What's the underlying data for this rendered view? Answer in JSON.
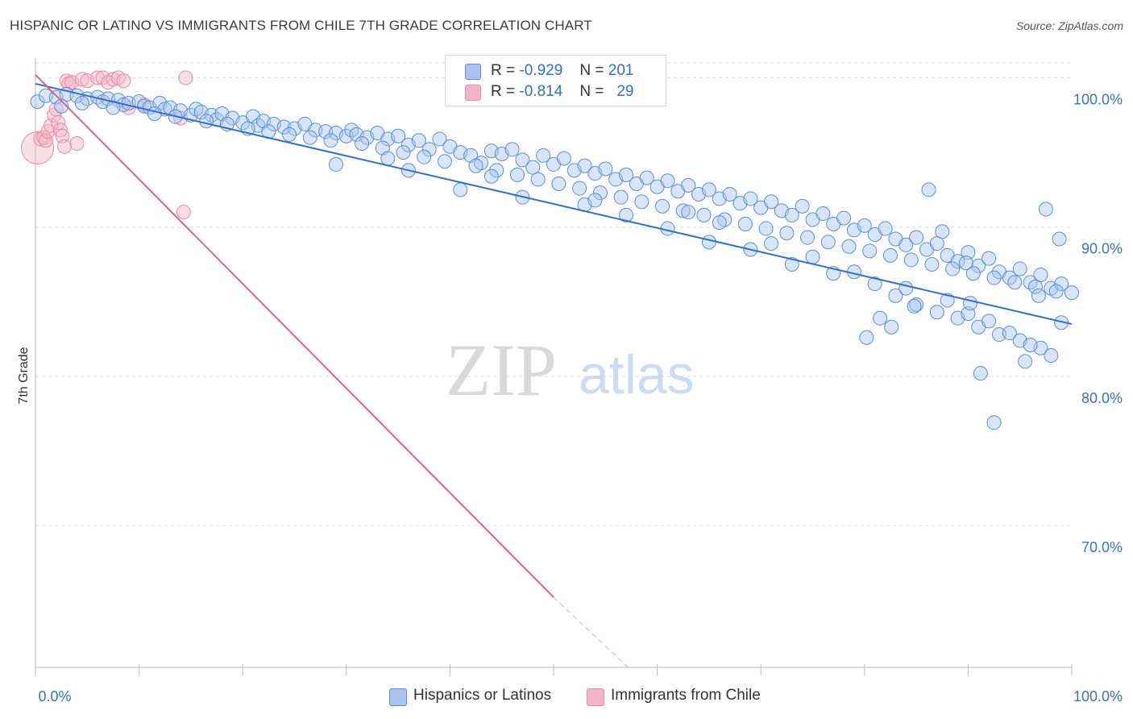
{
  "header": {
    "title": "HISPANIC OR LATINO VS IMMIGRANTS FROM CHILE 7TH GRADE CORRELATION CHART",
    "source": "Source: ZipAtlas.com"
  },
  "watermark": {
    "zip": "ZIP",
    "atlas": "atlas"
  },
  "legend": {
    "rows": [
      {
        "r_label": "R =",
        "r_value": "-0.929",
        "n_label": "N =",
        "n_value": "201",
        "color": "#a9c5ef"
      },
      {
        "r_label": "R =",
        "r_value": "-0.814",
        "n_label": "N =",
        "n_value": "29",
        "color": "#f5b5c8"
      }
    ]
  },
  "bottom_legend": [
    {
      "label": "Hispanics or Latinos",
      "color": "#a9c5ef"
    },
    {
      "label": "Immigrants from Chile",
      "color": "#f5b5c8"
    }
  ],
  "colors": {
    "blue_fill": "#a9c5ef",
    "blue_stroke": "#5b8fd8",
    "blue_line": "#2f6fd0",
    "pink_fill": "#f5b5c8",
    "pink_stroke": "#e889a8",
    "pink_line": "#e0608c",
    "grid": "#dddddd",
    "tick_label": "#3a72c4"
  },
  "chart_data": {
    "type": "scatter",
    "title": "HISPANIC OR LATINO VS IMMIGRANTS FROM CHILE 7TH GRADE CORRELATION CHART",
    "xlabel": "",
    "ylabel": "7th Grade",
    "xlim": [
      0,
      100
    ],
    "ylim": [
      60.5,
      101
    ],
    "x_tick_labels": [
      "0.0%",
      "100.0%"
    ],
    "y_ticks": [
      70,
      80,
      90,
      100
    ],
    "y_tick_labels": [
      "70.0%",
      "80.0%",
      "90.0%",
      "100.0%"
    ],
    "grid": true,
    "legend_position": "top-center",
    "series": [
      {
        "name": "Hispanics or Latinos",
        "r": -0.929,
        "n": 201,
        "trend": {
          "x0": 0,
          "y0": 99.6,
          "x1": 100,
          "y1": 83.5
        },
        "points": [
          [
            0.2,
            98.4
          ],
          [
            1,
            98.8
          ],
          [
            2,
            98.7
          ],
          [
            3,
            98.9
          ],
          [
            4,
            98.8
          ],
          [
            5,
            98.6
          ],
          [
            6,
            98.7
          ],
          [
            6.5,
            98.4
          ],
          [
            7,
            98.6
          ],
          [
            8,
            98.5
          ],
          [
            8.5,
            98.2
          ],
          [
            9,
            98.3
          ],
          [
            10,
            98.4
          ],
          [
            10.5,
            98.1
          ],
          [
            11,
            98.0
          ],
          [
            12,
            98.3
          ],
          [
            12.5,
            97.9
          ],
          [
            13,
            98.0
          ],
          [
            14,
            97.8
          ],
          [
            15,
            97.5
          ],
          [
            15.5,
            97.9
          ],
          [
            16,
            97.7
          ],
          [
            17,
            97.5
          ],
          [
            17.5,
            97.2
          ],
          [
            18,
            97.6
          ],
          [
            19,
            97.3
          ],
          [
            20,
            97.0
          ],
          [
            21,
            97.4
          ],
          [
            21.5,
            96.8
          ],
          [
            22,
            97.1
          ],
          [
            23,
            96.9
          ],
          [
            24,
            96.7
          ],
          [
            25,
            96.6
          ],
          [
            26,
            96.9
          ],
          [
            27,
            96.5
          ],
          [
            28,
            96.4
          ],
          [
            29,
            96.3
          ],
          [
            30,
            96.1
          ],
          [
            30.5,
            96.5
          ],
          [
            31,
            96.2
          ],
          [
            32,
            96.0
          ],
          [
            33,
            96.3
          ],
          [
            34,
            95.9
          ],
          [
            35,
            96.1
          ],
          [
            36,
            95.5
          ],
          [
            37,
            95.8
          ],
          [
            38,
            95.2
          ],
          [
            39,
            95.9
          ],
          [
            40,
            95.4
          ],
          [
            41,
            95.0
          ],
          [
            42,
            94.8
          ],
          [
            43,
            94.3
          ],
          [
            44,
            95.1
          ],
          [
            45,
            94.9
          ],
          [
            46,
            95.2
          ],
          [
            47,
            94.5
          ],
          [
            48,
            94.0
          ],
          [
            49,
            94.8
          ],
          [
            50,
            94.2
          ],
          [
            51,
            94.6
          ],
          [
            52,
            93.8
          ],
          [
            53,
            94.1
          ],
          [
            54,
            93.6
          ],
          [
            55,
            93.9
          ],
          [
            56,
            93.2
          ],
          [
            57,
            93.5
          ],
          [
            58,
            92.9
          ],
          [
            59,
            93.3
          ],
          [
            60,
            92.7
          ],
          [
            61,
            93.1
          ],
          [
            62,
            92.4
          ],
          [
            63,
            92.8
          ],
          [
            64,
            92.2
          ],
          [
            65,
            92.5
          ],
          [
            66,
            91.9
          ],
          [
            67,
            92.2
          ],
          [
            68,
            91.6
          ],
          [
            69,
            91.9
          ],
          [
            70,
            91.3
          ],
          [
            71,
            91.7
          ],
          [
            72,
            91.1
          ],
          [
            73,
            90.8
          ],
          [
            74,
            91.4
          ],
          [
            75,
            90.5
          ],
          [
            76,
            90.9
          ],
          [
            77,
            90.2
          ],
          [
            78,
            90.6
          ],
          [
            79,
            89.8
          ],
          [
            80,
            90.1
          ],
          [
            81,
            89.5
          ],
          [
            82,
            89.9
          ],
          [
            83,
            89.2
          ],
          [
            84,
            88.8
          ],
          [
            85,
            89.3
          ],
          [
            86,
            88.5
          ],
          [
            87,
            88.9
          ],
          [
            88,
            88.1
          ],
          [
            89,
            87.7
          ],
          [
            90,
            88.3
          ],
          [
            91,
            87.4
          ],
          [
            92,
            87.9
          ],
          [
            93,
            87.0
          ],
          [
            94,
            86.6
          ],
          [
            95,
            87.2
          ],
          [
            96,
            86.3
          ],
          [
            97,
            86.8
          ],
          [
            98,
            85.9
          ],
          [
            99,
            86.2
          ],
          [
            100,
            85.6
          ],
          [
            2.5,
            98.1
          ],
          [
            4.5,
            98.3
          ],
          [
            7.5,
            98.0
          ],
          [
            11.5,
            97.6
          ],
          [
            13.5,
            97.4
          ],
          [
            16.5,
            97.1
          ],
          [
            18.5,
            96.9
          ],
          [
            20.5,
            96.6
          ],
          [
            22.5,
            96.4
          ],
          [
            24.5,
            96.2
          ],
          [
            26.5,
            96.0
          ],
          [
            28.5,
            95.8
          ],
          [
            31.5,
            95.6
          ],
          [
            33.5,
            95.3
          ],
          [
            35.5,
            95.0
          ],
          [
            37.5,
            94.7
          ],
          [
            39.5,
            94.4
          ],
          [
            42.5,
            94.1
          ],
          [
            44.5,
            93.8
          ],
          [
            46.5,
            93.5
          ],
          [
            48.5,
            93.2
          ],
          [
            50.5,
            92.9
          ],
          [
            52.5,
            92.6
          ],
          [
            54.5,
            92.3
          ],
          [
            56.5,
            92.0
          ],
          [
            58.5,
            91.7
          ],
          [
            60.5,
            91.4
          ],
          [
            62.5,
            91.1
          ],
          [
            64.5,
            90.8
          ],
          [
            66.5,
            90.5
          ],
          [
            68.5,
            90.2
          ],
          [
            70.5,
            89.9
          ],
          [
            72.5,
            89.6
          ],
          [
            74.5,
            89.3
          ],
          [
            76.5,
            89.0
          ],
          [
            78.5,
            88.7
          ],
          [
            80.5,
            88.4
          ],
          [
            82.5,
            88.1
          ],
          [
            84.5,
            87.8
          ],
          [
            86.5,
            87.5
          ],
          [
            88.5,
            87.2
          ],
          [
            90.5,
            86.9
          ],
          [
            92.5,
            86.6
          ],
          [
            94.5,
            86.3
          ],
          [
            96.5,
            86.0
          ],
          [
            98.5,
            85.7
          ],
          [
            29,
            94.2
          ],
          [
            36,
            93.8
          ],
          [
            41,
            92.5
          ],
          [
            47,
            92.0
          ],
          [
            53,
            91.5
          ],
          [
            57,
            90.8
          ],
          [
            61,
            89.9
          ],
          [
            65,
            89.0
          ],
          [
            69,
            88.5
          ],
          [
            73,
            87.5
          ],
          [
            77,
            86.9
          ],
          [
            81,
            86.2
          ],
          [
            83,
            85.4
          ],
          [
            85,
            84.8
          ],
          [
            87,
            84.3
          ],
          [
            89,
            83.9
          ],
          [
            91,
            83.3
          ],
          [
            93,
            82.8
          ],
          [
            95,
            82.4
          ],
          [
            97,
            81.9
          ],
          [
            34,
            94.6
          ],
          [
            44,
            93.4
          ],
          [
            54,
            91.8
          ],
          [
            63,
            91.0
          ],
          [
            66,
            90.3
          ],
          [
            71,
            88.9
          ],
          [
            75,
            88.0
          ],
          [
            79,
            87.0
          ],
          [
            84,
            85.9
          ],
          [
            88,
            85.1
          ],
          [
            90,
            84.2
          ],
          [
            92,
            83.7
          ],
          [
            94,
            82.9
          ],
          [
            96,
            82.1
          ],
          [
            98,
            81.4
          ],
          [
            99,
            83.6
          ],
          [
            98.8,
            89.2
          ],
          [
            97.5,
            91.2
          ],
          [
            96.8,
            85.4
          ],
          [
            95.5,
            81.0
          ],
          [
            92.5,
            76.9
          ],
          [
            91.2,
            80.2
          ],
          [
            90.2,
            84.9
          ],
          [
            89.8,
            87.6
          ],
          [
            87.5,
            89.7
          ],
          [
            86.2,
            92.5
          ],
          [
            84.8,
            84.7
          ],
          [
            82.6,
            83.3
          ],
          [
            81.5,
            83.9
          ],
          [
            80.2,
            82.6
          ]
        ]
      },
      {
        "name": "Immigrants from Chile",
        "r": -0.814,
        "n": 29,
        "trend": {
          "x0": 0,
          "y0": 100.2,
          "x1": 50,
          "y1": 65.2
        },
        "trend_dashed": {
          "x0": 50,
          "y0": 65.2,
          "x1": 57.2,
          "y1": 60.5
        },
        "points": [
          [
            0.2,
            95.3
          ],
          [
            0.5,
            95.9
          ],
          [
            0.8,
            96.0
          ],
          [
            1.0,
            95.8
          ],
          [
            1.2,
            96.4
          ],
          [
            1.5,
            96.8
          ],
          [
            1.8,
            97.5
          ],
          [
            2.0,
            97.9
          ],
          [
            2.2,
            97.0
          ],
          [
            2.4,
            96.5
          ],
          [
            2.6,
            96.1
          ],
          [
            2.8,
            95.4
          ],
          [
            3.0,
            99.8
          ],
          [
            3.2,
            99.6
          ],
          [
            3.5,
            99.7
          ],
          [
            4.0,
            95.6
          ],
          [
            4.5,
            99.9
          ],
          [
            5.0,
            99.8
          ],
          [
            6.0,
            100.0
          ],
          [
            6.5,
            100.0
          ],
          [
            7.0,
            99.7
          ],
          [
            7.5,
            99.9
          ],
          [
            8.0,
            100.0
          ],
          [
            8.5,
            99.8
          ],
          [
            9.0,
            98.0
          ],
          [
            10.5,
            98.2
          ],
          [
            14.0,
            97.3
          ],
          [
            14.3,
            91.0
          ],
          [
            14.5,
            100.0
          ]
        ]
      }
    ]
  }
}
